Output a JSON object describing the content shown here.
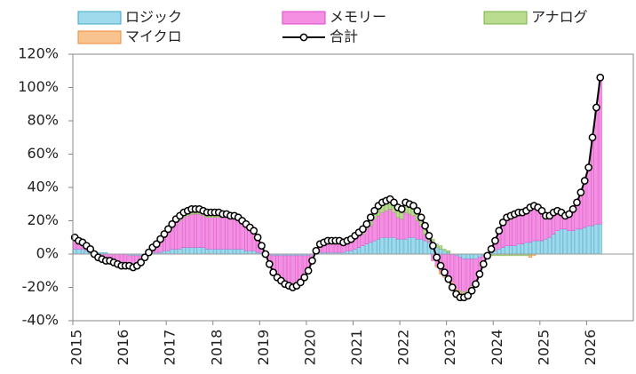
{
  "chart_data": {
    "type": "stacked-bar-line",
    "categories": [
      "2015",
      null,
      null,
      null,
      null,
      null,
      null,
      null,
      null,
      null,
      null,
      null,
      "2016",
      null,
      null,
      null,
      null,
      null,
      null,
      null,
      null,
      null,
      null,
      null,
      "2017",
      null,
      null,
      null,
      null,
      null,
      null,
      null,
      null,
      null,
      null,
      null,
      "2018",
      null,
      null,
      null,
      null,
      null,
      null,
      null,
      null,
      null,
      null,
      null,
      "2019",
      null,
      null,
      null,
      null,
      null,
      null,
      null,
      null,
      null,
      null,
      null,
      "2020",
      null,
      null,
      null,
      null,
      null,
      null,
      null,
      null,
      null,
      null,
      null,
      "2021",
      null,
      null,
      null,
      null,
      null,
      null,
      null,
      null,
      null,
      null,
      null,
      "2022",
      null,
      null,
      null,
      null,
      null,
      null,
      null,
      null,
      null,
      null,
      null,
      "2023",
      null,
      null,
      null,
      null,
      null,
      null,
      null,
      null,
      null,
      null,
      null,
      "2024",
      null,
      null,
      null,
      null,
      null,
      null,
      null,
      null,
      null,
      null,
      null,
      "2025",
      null,
      null,
      null,
      null,
      null,
      null,
      null,
      null,
      null,
      null,
      null,
      "2026",
      null,
      null,
      null
    ],
    "series": [
      {
        "name": "ロジック",
        "color": "#9fd9ec",
        "stroke": "#3fa9c9",
        "values": [
          3,
          3,
          3,
          2,
          2,
          2,
          1,
          1,
          1,
          0,
          0,
          0,
          0,
          0,
          -1,
          -1,
          -1,
          -1,
          0,
          0,
          1,
          1,
          1,
          2,
          2,
          3,
          3,
          3,
          4,
          4,
          4,
          4,
          4,
          4,
          3,
          3,
          3,
          3,
          3,
          3,
          3,
          3,
          3,
          3,
          2,
          2,
          2,
          1,
          1,
          0,
          0,
          -1,
          -1,
          -1,
          -1,
          -1,
          -1,
          -1,
          -1,
          -1,
          -1,
          0,
          0,
          1,
          1,
          1,
          1,
          1,
          1,
          1,
          2,
          2,
          3,
          4,
          5,
          6,
          7,
          8,
          9,
          10,
          10,
          10,
          10,
          9,
          9,
          9,
          10,
          10,
          9,
          9,
          8,
          7,
          6,
          4,
          3,
          2,
          1,
          0,
          -1,
          -2,
          -3,
          -3,
          -3,
          -3,
          -2,
          -1,
          0,
          1,
          2,
          3,
          4,
          5,
          5,
          5,
          6,
          6,
          7,
          7,
          8,
          8,
          8,
          9,
          10,
          12,
          14,
          15,
          15,
          14,
          14,
          15,
          15,
          16,
          17,
          17,
          18,
          18
        ]
      },
      {
        "name": "メモリー",
        "color": "#f48fe2",
        "stroke": "#dc47c8",
        "values": [
          5,
          3,
          3,
          2,
          1,
          -2,
          -3,
          -4,
          -5,
          -4,
          -5,
          -6,
          -7,
          -7,
          -6,
          -7,
          -6,
          -4,
          -2,
          1,
          3,
          4,
          7,
          9,
          12,
          14,
          16,
          17,
          18,
          19,
          20,
          20,
          20,
          19,
          19,
          19,
          19,
          19,
          19,
          19,
          19,
          19,
          18,
          16,
          15,
          13,
          12,
          9,
          4,
          0,
          -5,
          -9,
          -12,
          -13,
          -15,
          -16,
          -17,
          -16,
          -14,
          -11,
          -7,
          -4,
          1,
          3,
          4,
          6,
          6,
          6,
          6,
          5,
          4,
          5,
          6,
          7,
          7,
          9,
          10,
          13,
          14,
          15,
          16,
          17,
          15,
          13,
          12,
          16,
          14,
          13,
          11,
          8,
          4,
          1,
          -4,
          -7,
          -10,
          -11,
          -14,
          -17,
          -20,
          -20,
          -20,
          -19,
          -16,
          -13,
          -8,
          -4,
          0,
          2,
          6,
          12,
          16,
          18,
          19,
          20,
          20,
          20,
          20,
          23,
          22,
          20,
          18,
          14,
          13,
          13,
          12,
          10,
          8,
          10,
          13,
          15,
          21,
          27,
          34,
          52,
          69,
          87
        ]
      },
      {
        "name": "アナログ",
        "color": "#b9dc8f",
        "stroke": "#7cae47",
        "values": [
          1,
          1,
          1,
          1,
          0,
          0,
          0,
          0,
          0,
          0,
          0,
          0,
          0,
          0,
          0,
          0,
          0,
          0,
          0,
          0,
          0,
          1,
          1,
          1,
          1,
          1,
          2,
          2,
          2,
          2,
          2,
          2,
          2,
          2,
          2,
          2,
          2,
          2,
          1,
          1,
          1,
          1,
          1,
          1,
          1,
          1,
          0,
          0,
          0,
          0,
          -1,
          -1,
          -1,
          -1,
          -1,
          -1,
          -1,
          -1,
          -1,
          -1,
          -1,
          0,
          0,
          0,
          0,
          0,
          0,
          0,
          0,
          0,
          1,
          1,
          1,
          1,
          2,
          2,
          3,
          3,
          4,
          4,
          4,
          4,
          4,
          4,
          4,
          4,
          4,
          4,
          4,
          4,
          4,
          3,
          3,
          2,
          2,
          1,
          1,
          0,
          0,
          -1,
          -1,
          -1,
          -1,
          -1,
          -1,
          -1,
          -1,
          -1,
          -1,
          -1,
          -1,
          -1,
          -1,
          -1,
          -1,
          -1,
          -1,
          -1,
          0,
          0,
          0,
          0,
          0,
          0,
          0,
          0,
          0,
          0,
          0,
          1,
          1,
          1,
          1,
          1,
          1,
          1
        ]
      },
      {
        "name": "マイクロ",
        "color": "#f9c38f",
        "stroke": "#ee8836",
        "values": [
          1,
          1,
          0,
          0,
          0,
          0,
          0,
          0,
          0,
          0,
          0,
          0,
          0,
          0,
          0,
          0,
          0,
          0,
          0,
          0,
          0,
          0,
          0,
          0,
          0,
          0,
          0,
          1,
          1,
          1,
          1,
          1,
          1,
          1,
          1,
          1,
          1,
          1,
          1,
          1,
          0,
          0,
          0,
          0,
          0,
          0,
          0,
          0,
          0,
          0,
          0,
          0,
          0,
          -1,
          -1,
          -1,
          -1,
          -1,
          -1,
          -1,
          -1,
          0,
          1,
          2,
          2,
          1,
          1,
          1,
          1,
          1,
          1,
          1,
          1,
          1,
          1,
          1,
          2,
          2,
          2,
          2,
          2,
          2,
          2,
          2,
          2,
          2,
          2,
          2,
          2,
          1,
          1,
          0,
          0,
          -1,
          -2,
          -3,
          -3,
          -3,
          -3,
          -3,
          -2,
          -2,
          -2,
          -1,
          -1,
          0,
          0,
          1,
          1,
          0,
          0,
          0,
          0,
          0,
          0,
          0,
          0,
          -1,
          -1,
          0,
          0,
          0,
          0,
          0,
          0,
          0,
          0,
          0,
          0,
          0,
          0,
          0,
          0,
          0,
          0,
          0
        ]
      },
      {
        "name": "合計",
        "color": "#000000",
        "kind": "line",
        "values": [
          10,
          8,
          7,
          5,
          3,
          0,
          -2,
          -3,
          -4,
          -4,
          -5,
          -6,
          -7,
          -7,
          -7,
          -8,
          -7,
          -5,
          -2,
          1,
          4,
          6,
          9,
          12,
          15,
          18,
          21,
          23,
          25,
          26,
          27,
          27,
          27,
          26,
          25,
          25,
          25,
          25,
          24,
          24,
          23,
          23,
          22,
          20,
          18,
          16,
          14,
          10,
          5,
          0,
          -6,
          -11,
          -14,
          -16,
          -18,
          -19,
          -20,
          -19,
          -17,
          -14,
          -10,
          -4,
          2,
          6,
          7,
          8,
          8,
          8,
          8,
          7,
          8,
          9,
          11,
          13,
          15,
          18,
          22,
          26,
          29,
          31,
          32,
          33,
          31,
          28,
          27,
          31,
          30,
          29,
          26,
          22,
          17,
          11,
          5,
          -2,
          -7,
          -11,
          -15,
          -20,
          -24,
          -26,
          -26,
          -25,
          -22,
          -18,
          -12,
          -6,
          -1,
          3,
          8,
          14,
          19,
          22,
          23,
          24,
          25,
          25,
          26,
          28,
          29,
          28,
          26,
          23,
          23,
          25,
          26,
          25,
          23,
          24,
          27,
          31,
          37,
          44,
          52,
          70,
          88,
          106
        ]
      }
    ],
    "ylim": [
      -40,
      120
    ],
    "yticks": [
      {
        "value": -40,
        "label": "-40%"
      },
      {
        "value": -20,
        "label": "-20%"
      },
      {
        "value": 0,
        "label": "0%"
      },
      {
        "value": 20,
        "label": "20%"
      },
      {
        "value": 40,
        "label": "40%"
      },
      {
        "value": 60,
        "label": "60%"
      },
      {
        "value": 80,
        "label": "80%"
      },
      {
        "value": 100,
        "label": "100%"
      },
      {
        "value": 120,
        "label": "120%"
      }
    ],
    "grid": false
  }
}
